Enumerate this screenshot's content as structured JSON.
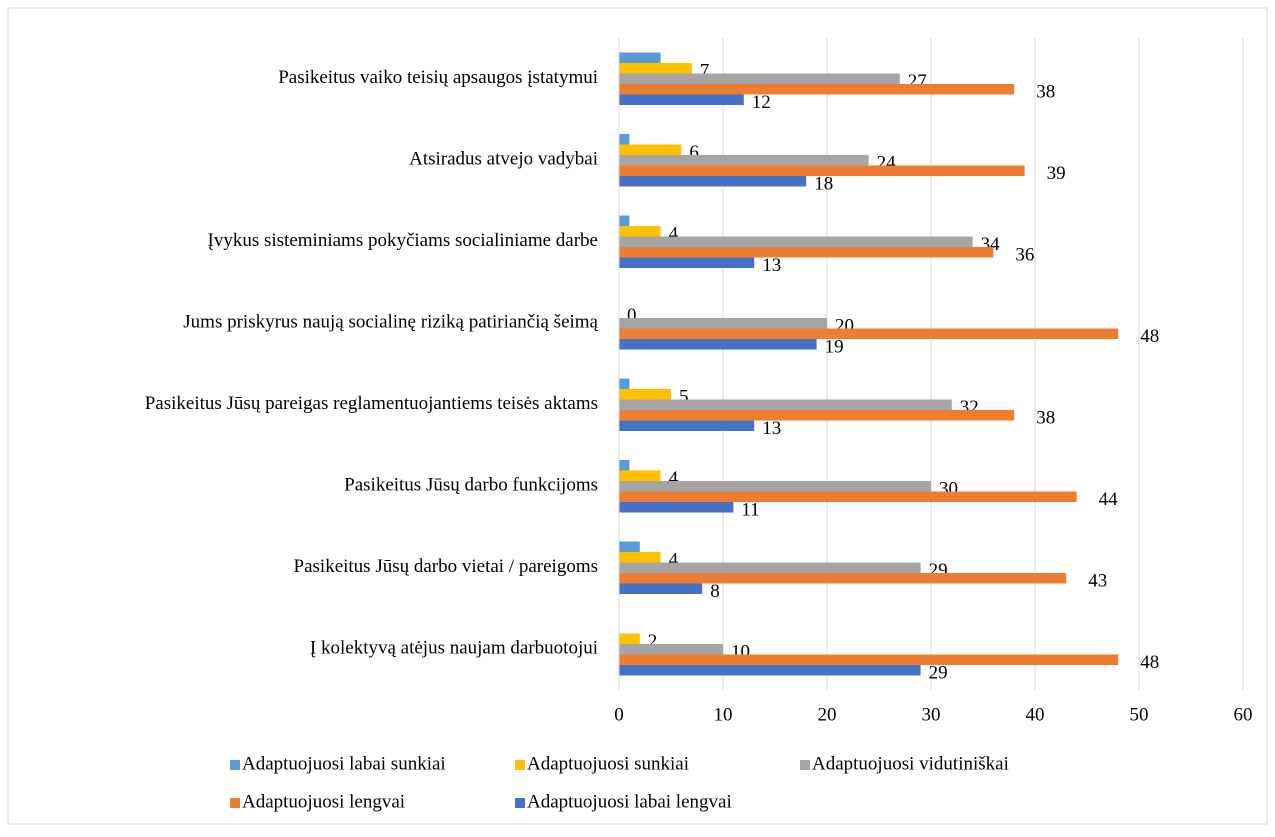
{
  "chart_data": {
    "type": "bar",
    "orientation": "horizontal",
    "categories": [
      "Pasikeitus vaiko teisių apsaugos įstatymui",
      "Atsiradus atvejo vadybai",
      "Įvykus sisteminiams pokyčiams socialiniame darbe",
      "Jums priskyrus naują socialinę riziką patiriančią šeimą",
      "Pasikeitus Jūsų pareigas reglamentuojantiems teisės aktams",
      "Pasikeitus Jūsų darbo funkcijoms",
      "Pasikeitus Jūsų darbo vietai / pareigoms",
      "Į kolektyvą atėjus naujam darbuotojui"
    ],
    "series": [
      {
        "name": "Adaptuojuosi labai sunkiai",
        "color": "#5b9bd5",
        "data_labels": false,
        "values": [
          4,
          1,
          1,
          0,
          1,
          1,
          2,
          0
        ]
      },
      {
        "name": "Adaptuojuosi sunkiai",
        "color": "#ffc000",
        "data_labels": true,
        "values": [
          7,
          6,
          4,
          0,
          5,
          4,
          4,
          2
        ]
      },
      {
        "name": "Adaptuojuosi vidutiniškai",
        "color": "#a5a5a5",
        "data_labels": true,
        "values": [
          27,
          24,
          34,
          20,
          32,
          30,
          29,
          10
        ]
      },
      {
        "name": "Adaptuojuosi lengvai",
        "color": "#ed7d31",
        "data_labels": true,
        "values": [
          38,
          39,
          36,
          48,
          38,
          44,
          43,
          48
        ]
      },
      {
        "name": "Adaptuojuosi labai lengvai",
        "color": "#4472c4",
        "data_labels": true,
        "values": [
          12,
          18,
          13,
          19,
          13,
          11,
          8,
          29
        ]
      }
    ],
    "xlim": [
      0,
      60
    ],
    "xticks": [
      0,
      10,
      20,
      30,
      40,
      50,
      60
    ],
    "grid": true,
    "legend": "bottom"
  }
}
